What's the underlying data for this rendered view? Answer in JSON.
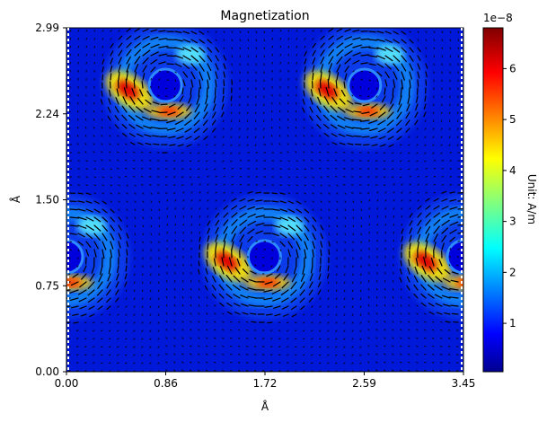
{
  "chart_data": {
    "type": "heatmap",
    "title": "Magnetization",
    "xlabel": "Å",
    "ylabel": "Å",
    "xlim": [
      0.0,
      3.45
    ],
    "ylim": [
      0.0,
      2.99
    ],
    "x_ticks": [
      "0.00",
      "0.86",
      "1.72",
      "2.59",
      "3.45"
    ],
    "y_ticks": [
      "0.00",
      "0.75",
      "1.50",
      "2.24",
      "2.99"
    ],
    "colorbar": {
      "label": "Unit: A/m",
      "exponent_label": "1e−8",
      "scale_factor": 1e-08,
      "range": [
        0.05,
        6.8
      ],
      "ticks": [
        "1",
        "2",
        "3",
        "4",
        "5",
        "6"
      ],
      "colormap": "jet"
    },
    "vortex_centers": [
      {
        "x": 0.86,
        "y": 2.49
      },
      {
        "x": 2.59,
        "y": 2.49
      },
      {
        "x": 1.72,
        "y": 1.0
      },
      {
        "x": 0.0,
        "y": 1.0
      },
      {
        "x": 3.45,
        "y": 1.0
      }
    ],
    "overlay": "quiver vector field (black arrows)"
  }
}
